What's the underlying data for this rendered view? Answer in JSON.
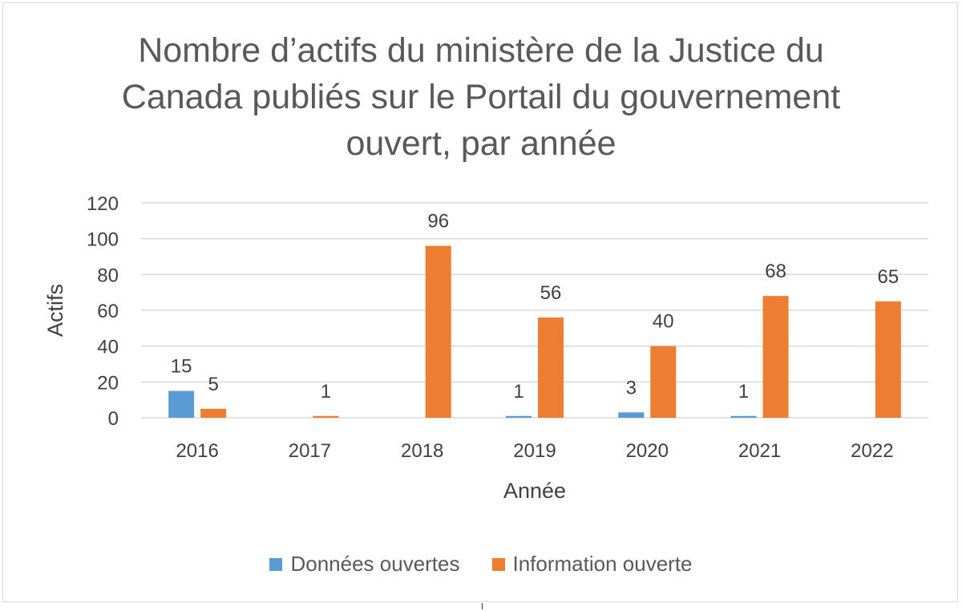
{
  "chart_data": {
    "type": "bar",
    "title": "Nombre d’actifs du ministère de la Justice du Canada publiés sur le Portail du gouvernement ouvert, par année",
    "xlabel": "Année",
    "ylabel": "Actifs",
    "categories": [
      "2016",
      "2017",
      "2018",
      "2019",
      "2020",
      "2021",
      "2022"
    ],
    "series": [
      {
        "name": "Données ouvertes",
        "color": "#5b9bd5",
        "values": [
          15,
          null,
          null,
          1,
          3,
          1,
          null
        ]
      },
      {
        "name": "Information ouverte",
        "color": "#ed7d31",
        "values": [
          5,
          1,
          96,
          56,
          40,
          68,
          65
        ]
      }
    ],
    "ylim": [
      0,
      120
    ],
    "yticks": [
      "0",
      "20",
      "40",
      "60",
      "80",
      "100",
      "120"
    ],
    "grid": true,
    "legend_position": "bottom"
  }
}
